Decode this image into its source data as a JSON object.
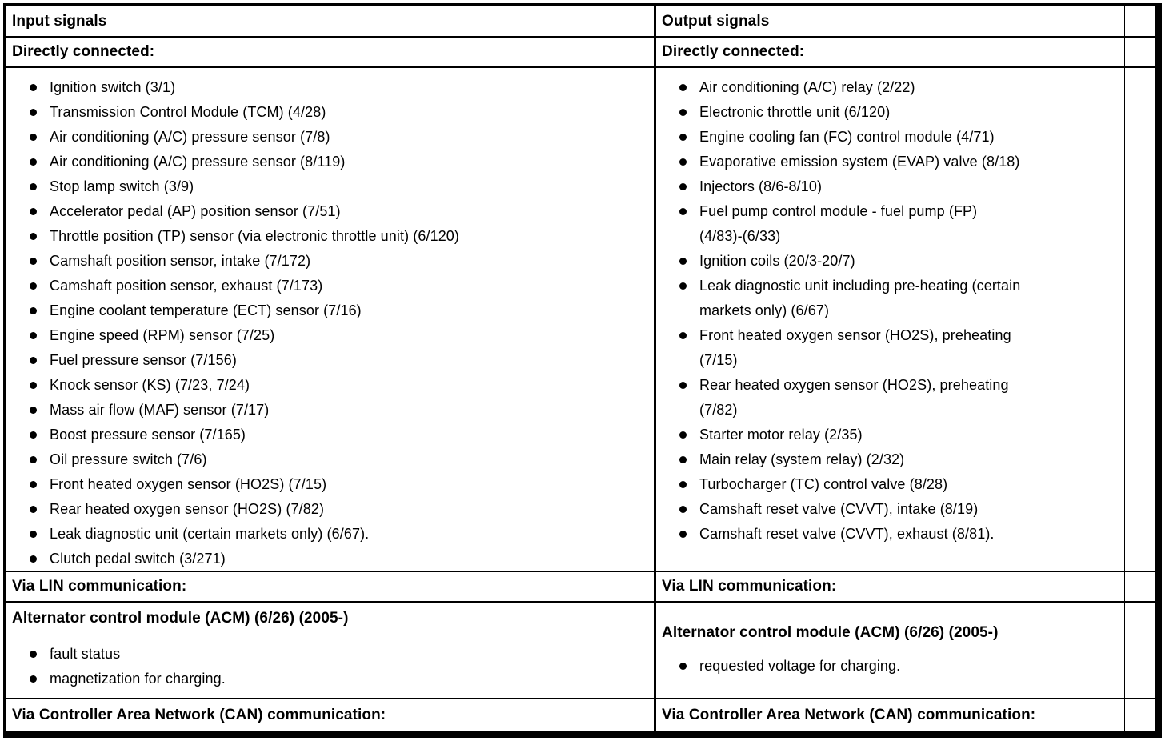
{
  "input": {
    "header": "Input signals",
    "directly_connected_label": "Directly connected:",
    "directly_connected_items": [
      "Ignition switch (3/1)",
      "Transmission Control Module (TCM) (4/28)",
      "Air conditioning (A/C) pressure sensor (7/8)",
      "Air conditioning (A/C) pressure sensor (8/119)",
      "Stop lamp switch (3/9)",
      "Accelerator pedal (AP) position sensor (7/51)",
      "Throttle position (TP) sensor (via electronic throttle unit) (6/120)",
      "Camshaft position sensor, intake (7/172)",
      "Camshaft position sensor, exhaust (7/173)",
      "Engine coolant temperature (ECT) sensor (7/16)",
      "Engine speed (RPM) sensor (7/25)",
      "Fuel pressure sensor (7/156)",
      "Knock sensor (KS) (7/23, 7/24)",
      "Mass air flow (MAF) sensor (7/17)",
      "Boost pressure sensor (7/165)",
      "Oil pressure switch (7/6)",
      "Front heated oxygen sensor (HO2S) (7/15)",
      "Rear heated oxygen sensor (HO2S) (7/82)",
      "Leak diagnostic unit (certain markets only) (6/67).",
      "Clutch pedal switch (3/271)"
    ],
    "lin_label": "Via LIN communication:",
    "lin_module_title": "Alternator control module (ACM) (6/26) (2005-)",
    "lin_items": [
      "fault status",
      "magnetization for charging."
    ],
    "can_label": "Via Controller Area Network (CAN) communication:"
  },
  "output": {
    "header": "Output signals",
    "directly_connected_label": "Directly connected:",
    "directly_connected_items": [
      "Air conditioning (A/C) relay (2/22)",
      "Electronic throttle unit (6/120)",
      "Engine cooling fan (FC) control module (4/71)",
      "Evaporative emission system (EVAP) valve (8/18)",
      "Injectors (8/6-8/10)",
      "Fuel pump control module - fuel pump (FP)\n(4/83)-(6/33)",
      "Ignition coils (20/3-20/7)",
      "Leak diagnostic unit including pre-heating (certain\nmarkets only) (6/67)",
      "Front heated oxygen sensor (HO2S), preheating\n(7/15)",
      "Rear heated oxygen sensor (HO2S), preheating\n(7/82)",
      "Starter motor relay (2/35)",
      "Main relay (system relay) (2/32)",
      "Turbocharger (TC) control valve (8/28)",
      "Camshaft reset valve (CVVT), intake (8/19)",
      "Camshaft reset valve (CVVT), exhaust (8/81)."
    ],
    "lin_label": "Via LIN communication:",
    "lin_module_title": "Alternator control module (ACM) (6/26) (2005-)",
    "lin_items": [
      "requested voltage for charging."
    ],
    "can_label": "Via Controller Area Network (CAN) communication:"
  }
}
